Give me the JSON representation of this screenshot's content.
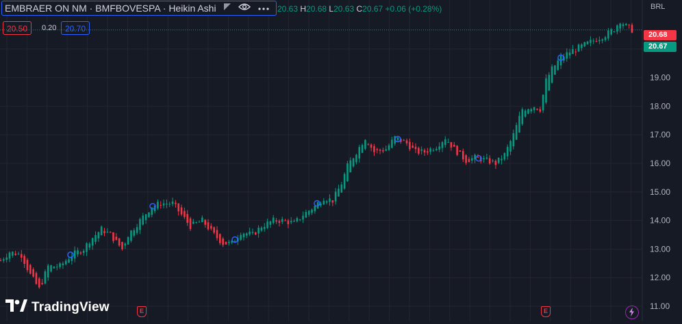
{
  "header": {
    "title": "EMBRAER ON NM · BMFBOVESPA · Heikin Ashi",
    "ohlc": {
      "open_value": "20.63",
      "high_label": "H",
      "high_value": "20.68",
      "low_label": "L",
      "low_value": "20.63",
      "close_label": "C",
      "close_value": "20.67",
      "change": "+0.06 (+0.28%)"
    },
    "sell_price": "20.50",
    "spread": "0.20",
    "buy_price": "20.70"
  },
  "colors": {
    "up": "#089981",
    "down": "#f23645",
    "accent": "#2962ff"
  },
  "currency": "BRL",
  "price_tags": {
    "high": "20.68",
    "last": "20.67"
  },
  "brand": {
    "name": "TradingView"
  },
  "events": {
    "earnings_label": "E"
  },
  "icons": [
    "flag-icon",
    "eye-icon",
    "more-icon",
    "tradingview-logo-icon",
    "flash-icon"
  ],
  "chart_data": {
    "type": "candlestick",
    "style": "Heikin Ashi",
    "ylim": [
      10.8,
      21.4
    ],
    "y_ticks": [
      "11.00",
      "12.00",
      "13.00",
      "14.00",
      "15.00",
      "16.00",
      "17.00",
      "18.00",
      "19.00",
      "20.00"
    ],
    "grid": true,
    "approximate_close_path": [
      [
        0,
        12.6
      ],
      [
        3,
        12.9
      ],
      [
        7,
        12.8
      ],
      [
        10,
        12.1
      ],
      [
        13,
        11.6
      ],
      [
        16,
        12.4
      ],
      [
        20,
        12.4
      ],
      [
        24,
        12.8
      ],
      [
        28,
        13.0
      ],
      [
        30,
        13.3
      ],
      [
        34,
        13.7
      ],
      [
        37,
        13.5
      ],
      [
        41,
        13.0
      ],
      [
        43,
        13.5
      ],
      [
        47,
        14.0
      ],
      [
        51,
        14.5
      ],
      [
        54,
        14.6
      ],
      [
        58,
        14.6
      ],
      [
        61,
        14.2
      ],
      [
        64,
        13.8
      ],
      [
        68,
        14.0
      ],
      [
        72,
        13.5
      ],
      [
        75,
        13.2
      ],
      [
        78,
        13.2
      ],
      [
        81,
        13.6
      ],
      [
        85,
        13.5
      ],
      [
        88,
        13.8
      ],
      [
        92,
        14.0
      ],
      [
        95,
        14.0
      ],
      [
        99,
        13.9
      ],
      [
        102,
        14.2
      ],
      [
        106,
        14.5
      ],
      [
        109,
        14.8
      ],
      [
        112,
        14.7
      ],
      [
        115,
        15.3
      ],
      [
        117,
        15.9
      ],
      [
        120,
        16.4
      ],
      [
        123,
        16.9
      ],
      [
        126,
        16.4
      ],
      [
        130,
        16.5
      ],
      [
        133,
        16.9
      ],
      [
        137,
        16.7
      ],
      [
        140,
        16.4
      ],
      [
        143,
        16.4
      ],
      [
        147,
        16.6
      ],
      [
        150,
        16.9
      ],
      [
        153,
        16.5
      ],
      [
        157,
        16.1
      ],
      [
        160,
        16.2
      ],
      [
        164,
        16.1
      ],
      [
        167,
        16.0
      ],
      [
        170,
        16.3
      ],
      [
        173,
        17.0
      ],
      [
        176,
        17.9
      ],
      [
        180,
        18.0
      ],
      [
        182,
        17.9
      ],
      [
        184,
        18.9
      ],
      [
        186,
        19.3
      ],
      [
        189,
        19.7
      ],
      [
        192,
        19.9
      ],
      [
        196,
        20.1
      ],
      [
        200,
        20.3
      ],
      [
        204,
        20.5
      ],
      [
        207,
        20.7
      ],
      [
        209,
        21.0
      ],
      [
        211,
        20.8
      ],
      [
        213,
        20.67
      ]
    ],
    "indicator_markers": [
      103,
      223,
      343,
      463,
      581,
      699,
      819
    ]
  }
}
